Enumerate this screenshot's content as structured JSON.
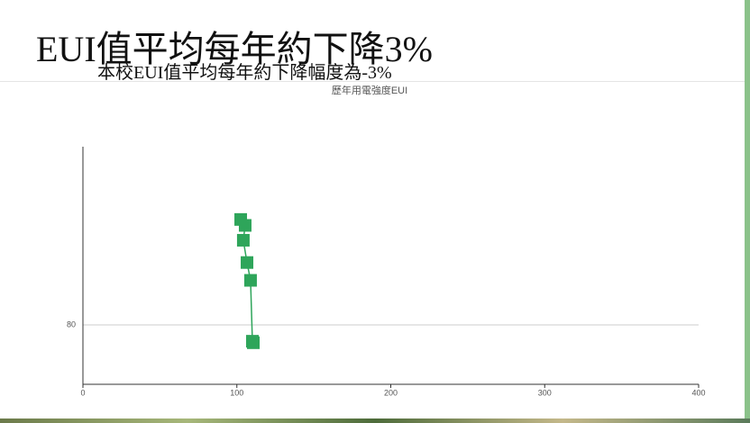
{
  "slide": {
    "heading": "EUI值平均每年約下降3%",
    "subheading": "本校EUI值平均每年約下降幅度為-3%"
  },
  "chart_data": {
    "type": "line",
    "title": "歷年用電強度EUI",
    "series": [
      {
        "color": "#2ea55a",
        "x": [
          102.5,
          105.4,
          104.2,
          106.6,
          108.9,
          110.1,
          110.7
        ],
        "values": [
          87.1,
          86.7,
          85.7,
          84.2,
          83.0,
          78.9,
          78.8
        ]
      }
    ],
    "xlim": [
      0,
      400
    ],
    "xticks": [
      0,
      100,
      200,
      300,
      400
    ],
    "ylim": [
      76,
      92
    ],
    "yticks": [
      80
    ],
    "grid": true
  }
}
